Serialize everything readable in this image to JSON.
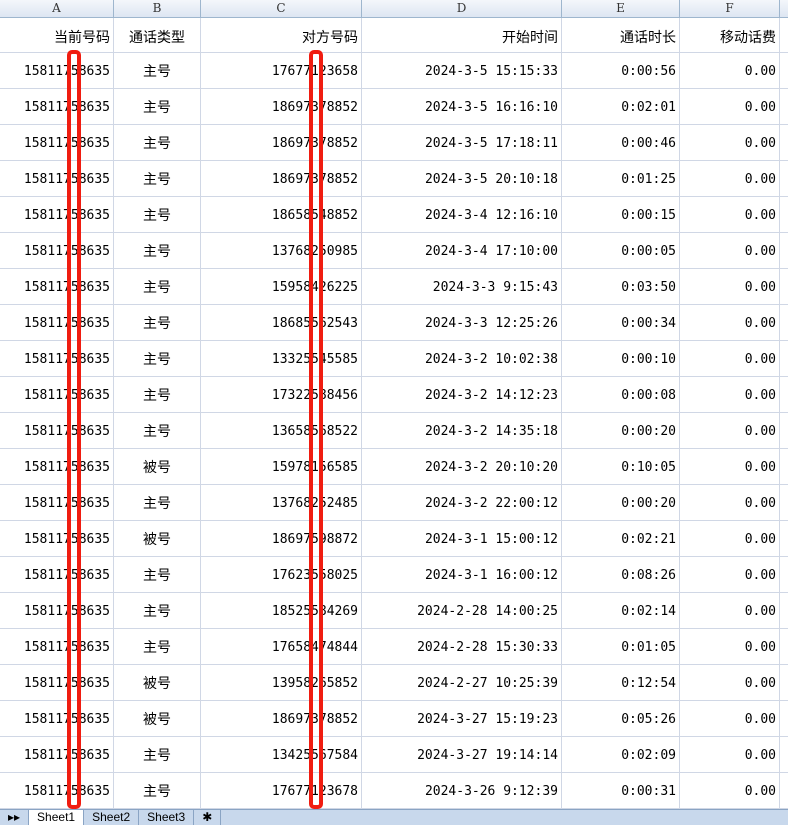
{
  "columns": [
    "A",
    "B",
    "C",
    "D",
    "E",
    "F"
  ],
  "headers": [
    "当前号码",
    "通话类型",
    "对方号码",
    "开始时间",
    "通话时长",
    "移动话费"
  ],
  "rows": [
    [
      "15811758635",
      "主号",
      "17677123658",
      "2024-3-5 15:15:33",
      "0:00:56",
      "0.00"
    ],
    [
      "15811758635",
      "主号",
      "18697378852",
      "2024-3-5 16:16:10",
      "0:02:01",
      "0.00"
    ],
    [
      "15811758635",
      "主号",
      "18697378852",
      "2024-3-5 17:18:11",
      "0:00:46",
      "0.00"
    ],
    [
      "15811758635",
      "主号",
      "18697378852",
      "2024-3-5 20:10:18",
      "0:01:25",
      "0.00"
    ],
    [
      "15811758635",
      "主号",
      "18658548852",
      "2024-3-4 12:16:10",
      "0:00:15",
      "0.00"
    ],
    [
      "15811758635",
      "主号",
      "13768250985",
      "2024-3-4 17:10:00",
      "0:00:05",
      "0.00"
    ],
    [
      "15811758635",
      "主号",
      "15958426225",
      "2024-3-3 9:15:43",
      "0:03:50",
      "0.00"
    ],
    [
      "15811758635",
      "主号",
      "18685562543",
      "2024-3-3 12:25:26",
      "0:00:34",
      "0.00"
    ],
    [
      "15811758635",
      "主号",
      "13325545585",
      "2024-3-2 10:02:38",
      "0:00:10",
      "0.00"
    ],
    [
      "15811758635",
      "主号",
      "17322588456",
      "2024-3-2 14:12:23",
      "0:00:08",
      "0.00"
    ],
    [
      "15811758635",
      "主号",
      "13658568522",
      "2024-3-2 14:35:18",
      "0:00:20",
      "0.00"
    ],
    [
      "15811758635",
      "被号",
      "15978156585",
      "2024-3-2 20:10:20",
      "0:10:05",
      "0.00"
    ],
    [
      "15811758635",
      "主号",
      "13768252485",
      "2024-3-2 22:00:12",
      "0:00:20",
      "0.00"
    ],
    [
      "15811758635",
      "被号",
      "18697598872",
      "2024-3-1 15:00:12",
      "0:02:21",
      "0.00"
    ],
    [
      "15811758635",
      "主号",
      "17623558025",
      "2024-3-1 16:00:12",
      "0:08:26",
      "0.00"
    ],
    [
      "15811758635",
      "主号",
      "18525584269",
      "2024-2-28 14:00:25",
      "0:02:14",
      "0.00"
    ],
    [
      "15811758635",
      "主号",
      "17658474844",
      "2024-2-28 15:30:33",
      "0:01:05",
      "0.00"
    ],
    [
      "15811758635",
      "被号",
      "13958265852",
      "2024-2-27 10:25:39",
      "0:12:54",
      "0.00"
    ],
    [
      "15811758635",
      "被号",
      "18697378852",
      "2024-3-27 15:19:23",
      "0:05:26",
      "0.00"
    ],
    [
      "15811758635",
      "主号",
      "13425567584",
      "2024-3-27 19:14:14",
      "0:02:09",
      "0.00"
    ],
    [
      "15811758635",
      "主号",
      "17677123678",
      "2024-3-26 9:12:39",
      "0:00:31",
      "0.00"
    ]
  ],
  "sheet_tabs": [
    "Sheet1",
    "Sheet2",
    "Sheet3"
  ],
  "highlight_color": "#f01c10"
}
